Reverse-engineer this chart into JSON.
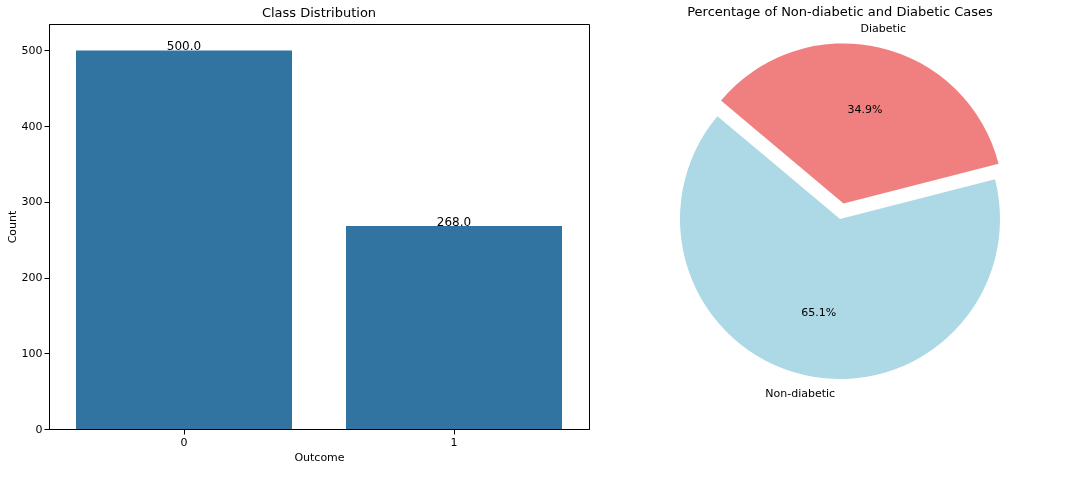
{
  "chart_data": [
    {
      "type": "bar",
      "title": "Class Distribution",
      "xlabel": "Outcome",
      "ylabel": "Count",
      "categories": [
        "0",
        "1"
      ],
      "values": [
        500,
        268
      ],
      "color": "#3274a1",
      "value_labels": [
        "500.0",
        "268.0"
      ],
      "ylim": [
        0,
        535
      ],
      "yticks": [
        0,
        100,
        200,
        300,
        400,
        500
      ],
      "grid": false
    },
    {
      "type": "pie",
      "title": "Percentage of Non-diabetic and Diabetic Cases",
      "categories": [
        "Non-diabetic",
        "Diabetic"
      ],
      "values": [
        65.1,
        34.9
      ],
      "colors": [
        "#add8e6",
        "#f08080"
      ],
      "value_labels": [
        "65.1%",
        "34.9%"
      ]
    }
  ]
}
